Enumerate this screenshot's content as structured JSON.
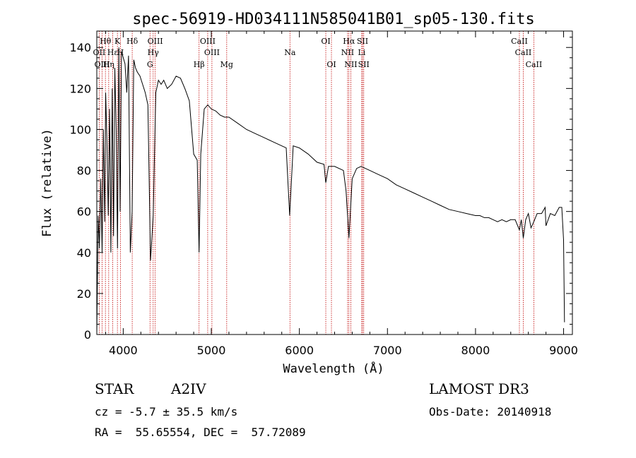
{
  "chart_data": {
    "type": "line",
    "title": "spec-56919-HD034111N585041B01_sp05-130.fits",
    "xlabel": "Wavelength (Å)",
    "ylabel": "Flux (relative)",
    "xlim": [
      3700,
      9100
    ],
    "ylim": [
      0,
      148
    ],
    "x_ticks": [
      4000,
      5000,
      6000,
      7000,
      8000,
      9000
    ],
    "y_ticks": [
      0,
      20,
      40,
      60,
      80,
      100,
      120,
      140
    ],
    "grid": false,
    "series": [
      {
        "name": "spectrum",
        "x": [
          3700,
          3715,
          3730,
          3745,
          3760,
          3775,
          3790,
          3800,
          3815,
          3830,
          3845,
          3860,
          3875,
          3890,
          3905,
          3920,
          3935,
          3950,
          3965,
          3980,
          4000,
          4020,
          4040,
          4060,
          4080,
          4101,
          4120,
          4140,
          4160,
          4190,
          4220,
          4250,
          4280,
          4310,
          4340,
          4370,
          4400,
          4430,
          4460,
          4500,
          4550,
          4600,
          4650,
          4700,
          4750,
          4800,
          4840,
          4861,
          4880,
          4920,
          4960,
          5000,
          5050,
          5100,
          5150,
          5200,
          5300,
          5400,
          5500,
          5600,
          5700,
          5800,
          5850,
          5890,
          5930,
          6000,
          6100,
          6200,
          6280,
          6300,
          6330,
          6400,
          6500,
          6530,
          6563,
          6600,
          6650,
          6700,
          6800,
          6900,
          7000,
          7100,
          7200,
          7300,
          7400,
          7500,
          7600,
          7700,
          7800,
          7900,
          8000,
          8050,
          8100,
          8150,
          8200,
          8250,
          8300,
          8350,
          8400,
          8450,
          8498,
          8520,
          8542,
          8570,
          8600,
          8630,
          8662,
          8700,
          8750,
          8790,
          8800,
          8850,
          8900,
          8950,
          8980,
          9000,
          9010
        ],
        "values": [
          0,
          58,
          42,
          76,
          40,
          100,
          55,
          118,
          95,
          58,
          110,
          40,
          120,
          48,
          130,
          100,
          42,
          140,
          60,
          138,
          135,
          132,
          118,
          136,
          40,
          60,
          134,
          130,
          128,
          126,
          122,
          118,
          112,
          36,
          58,
          118,
          124,
          122,
          124,
          120,
          122,
          126,
          125,
          120,
          114,
          88,
          85,
          40,
          88,
          110,
          112,
          110,
          109,
          107,
          106,
          106,
          103,
          100,
          98,
          96,
          94,
          92,
          91,
          58,
          92,
          91,
          88,
          84,
          83,
          74,
          82,
          82,
          80,
          70,
          47,
          76,
          81,
          82,
          80,
          78,
          76,
          73,
          71,
          69,
          67,
          65,
          63,
          61,
          60,
          59,
          58,
          58,
          57,
          57,
          56,
          55,
          56,
          55,
          56,
          56,
          51,
          56,
          47,
          56,
          59,
          52,
          55,
          59,
          59,
          62,
          53,
          59,
          58,
          62,
          62,
          46,
          6
        ]
      }
    ],
    "line_labels": [
      {
        "text": "Hθ",
        "wl": 3798,
        "row": 1
      },
      {
        "text": "K",
        "wl": 3934,
        "row": 1
      },
      {
        "text": "Hδ",
        "wl": 4102,
        "row": 1
      },
      {
        "text": "OIII",
        "wl": 4363,
        "row": 1
      },
      {
        "text": "OIII",
        "wl": 4959,
        "row": 1
      },
      {
        "text": "OI",
        "wl": 6300,
        "row": 1
      },
      {
        "text": "Hα",
        "wl": 6563,
        "row": 1
      },
      {
        "text": "SII",
        "wl": 6717,
        "row": 1
      },
      {
        "text": "CaII",
        "wl": 8498,
        "row": 1
      },
      {
        "text": "OII",
        "wl": 3727,
        "row": 2
      },
      {
        "text": "Hε",
        "wl": 3880,
        "row": 2
      },
      {
        "text": "H",
        "wl": 3968,
        "row": 2
      },
      {
        "text": "Hγ",
        "wl": 4340,
        "row": 2
      },
      {
        "text": "OIII",
        "wl": 5007,
        "row": 2
      },
      {
        "text": "Na",
        "wl": 5893,
        "row": 2
      },
      {
        "text": "NII",
        "wl": 6548,
        "row": 2
      },
      {
        "text": "Li",
        "wl": 6708,
        "row": 2
      },
      {
        "text": "CaII",
        "wl": 8542,
        "row": 2
      },
      {
        "text": "OIII",
        "wl": 3760,
        "row": 3
      },
      {
        "text": "Hη",
        "wl": 3835,
        "row": 3
      },
      {
        "text": "G",
        "wl": 4304,
        "row": 3
      },
      {
        "text": "Hβ",
        "wl": 4861,
        "row": 3
      },
      {
        "text": "Mg",
        "wl": 5175,
        "row": 3
      },
      {
        "text": "OI",
        "wl": 6364,
        "row": 3
      },
      {
        "text": "NII",
        "wl": 6584,
        "row": 3
      },
      {
        "text": "SII",
        "wl": 6731,
        "row": 3
      },
      {
        "text": "CaII",
        "wl": 8662,
        "row": 3
      }
    ],
    "line_markers": [
      3727,
      3760,
      3798,
      3835,
      3880,
      3934,
      3968,
      4102,
      4304,
      4340,
      4363,
      4861,
      4959,
      5007,
      5175,
      5893,
      6300,
      6364,
      6548,
      6563,
      6584,
      6708,
      6717,
      6731,
      8498,
      8542,
      8662
    ],
    "marker_color": "#c00000",
    "line_color": "#000000"
  },
  "info": {
    "object_class": "STAR",
    "subclass": "A2IV",
    "survey": "LAMOST DR3",
    "redshift": "cz = -5.7 ± 35.5 km/s",
    "obs_date": "Obs-Date: 20140918",
    "coords": "RA =  55.65554, DEC =  57.72089"
  }
}
